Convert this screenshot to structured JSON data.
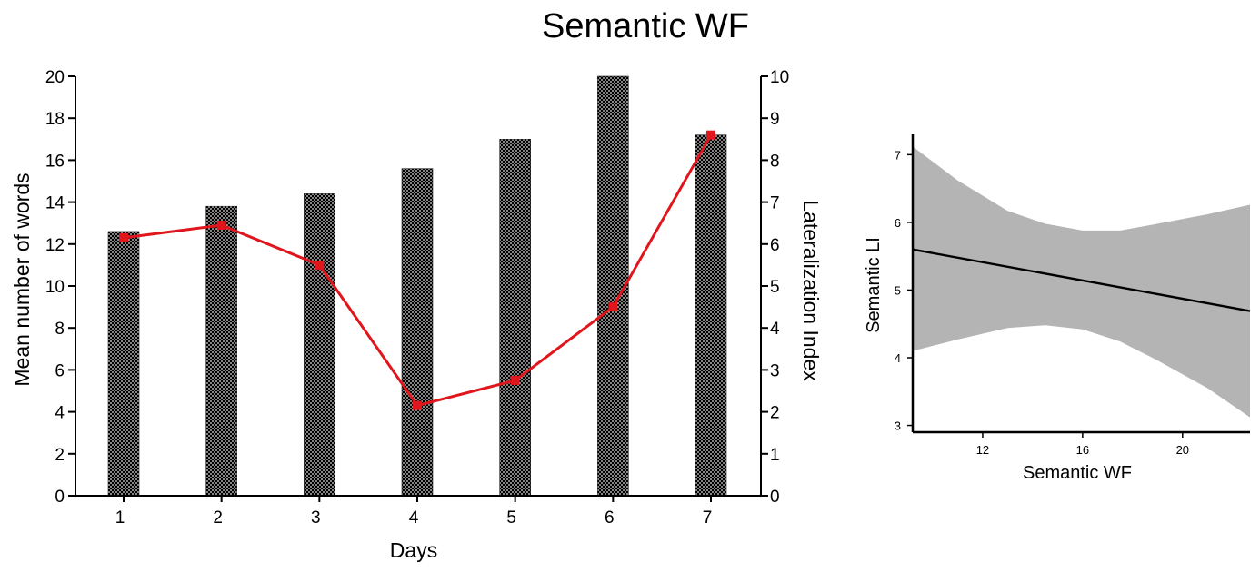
{
  "title": "Semantic WF",
  "colors": {
    "line": "#e0161c",
    "band": "#b4b4b4",
    "bar_pattern": "#000000"
  },
  "chart_data": [
    {
      "type": "bar+line",
      "xlabel": "Days",
      "ylabel_left": "Mean number of words",
      "ylabel_right": "Lateralization Index",
      "categories": [
        "1",
        "2",
        "3",
        "4",
        "5",
        "6",
        "7"
      ],
      "ylim_left": [
        0,
        20
      ],
      "yticks_left": [
        "0",
        "2",
        "4",
        "6",
        "8",
        "10",
        "12",
        "14",
        "16",
        "18",
        "20"
      ],
      "ylim_right": [
        0,
        10
      ],
      "yticks_right": [
        "0",
        "1",
        "2",
        "3",
        "4",
        "5",
        "6",
        "7",
        "8",
        "9",
        "10"
      ],
      "series": [
        {
          "values": [
            12.6,
            13.8,
            14.4,
            15.6,
            17.0,
            20.0,
            17.2
          ],
          "axis": "left",
          "kind": "bar",
          "fill": "crosshatch"
        },
        {
          "values": [
            6.15,
            6.45,
            5.5,
            2.15,
            2.75,
            4.5,
            8.6
          ],
          "axis": "right",
          "kind": "line",
          "marker": "square"
        }
      ],
      "grid": false
    },
    {
      "type": "line",
      "xlabel": "Semantic WF",
      "ylabel": "Semantic LI",
      "xlim": [
        9.2,
        22.7
      ],
      "ylim": [
        2.9,
        7.3
      ],
      "xticks": [
        "12",
        "16",
        "20"
      ],
      "yticks": [
        "3",
        "4",
        "5",
        "6",
        "7"
      ],
      "fit": {
        "x": [
          9.2,
          22.7
        ],
        "y": [
          5.6,
          4.69
        ]
      },
      "confidence_band": {
        "x": [
          9.2,
          11,
          13,
          14.5,
          16,
          17.5,
          19,
          21,
          22.7
        ],
        "upper": [
          7.12,
          6.62,
          6.17,
          5.98,
          5.88,
          5.88,
          5.98,
          6.12,
          6.26
        ],
        "lower": [
          4.1,
          4.27,
          4.44,
          4.48,
          4.42,
          4.24,
          3.96,
          3.55,
          3.12
        ]
      },
      "grid": false
    }
  ]
}
